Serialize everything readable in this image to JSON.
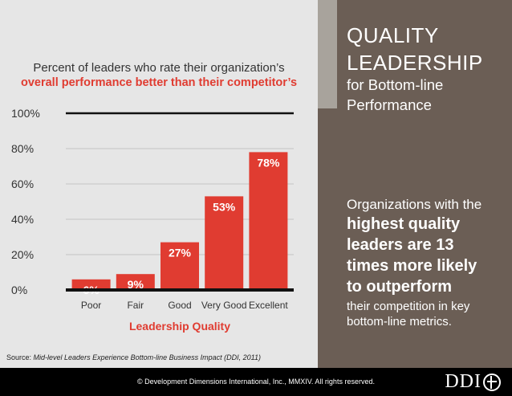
{
  "chart_data": {
    "type": "bar",
    "title_line1": "Percent of leaders who rate their organization’s",
    "title_line2": "overall performance better than their competitor’s",
    "categories": [
      "Poor",
      "Fair",
      "Good",
      "Very Good",
      "Excellent"
    ],
    "values": [
      6,
      9,
      27,
      53,
      78
    ],
    "value_labels": [
      "6%",
      "9%",
      "27%",
      "53%",
      "78%"
    ],
    "xlabel": "Leadership Quality",
    "ylabel": "",
    "ylim": [
      0,
      100
    ],
    "yticks": [
      "0%",
      "20%",
      "40%",
      "60%",
      "80%",
      "100%"
    ],
    "grid": true,
    "bar_color": "#e03c31"
  },
  "source": {
    "prefix": "Source: ",
    "text": "Mid-level Leaders Experience Bottom-line Business Impact (DDI, 2011)"
  },
  "heading": {
    "line1": "QUALITY",
    "line2": "LEADERSHIP",
    "sub1": "for Bottom-line",
    "sub2": "Performance"
  },
  "claim": {
    "intro": "Organizations with the",
    "bold1": "highest quality",
    "bold2": "leaders are 13",
    "bold3": "times more likely",
    "bold4": "to outperform",
    "tail1": "their competition in key",
    "tail2": "bottom-line metrics."
  },
  "footer": {
    "copyright": "© Development Dimensions International, Inc., MMXIV.  All rights reserved.",
    "logo_text": "DDI"
  },
  "colors": {
    "panel_brown": "#6b5e55",
    "panel_gray": "#e6e6e6",
    "accent_gray": "#a8a39c",
    "red": "#e03c31"
  }
}
